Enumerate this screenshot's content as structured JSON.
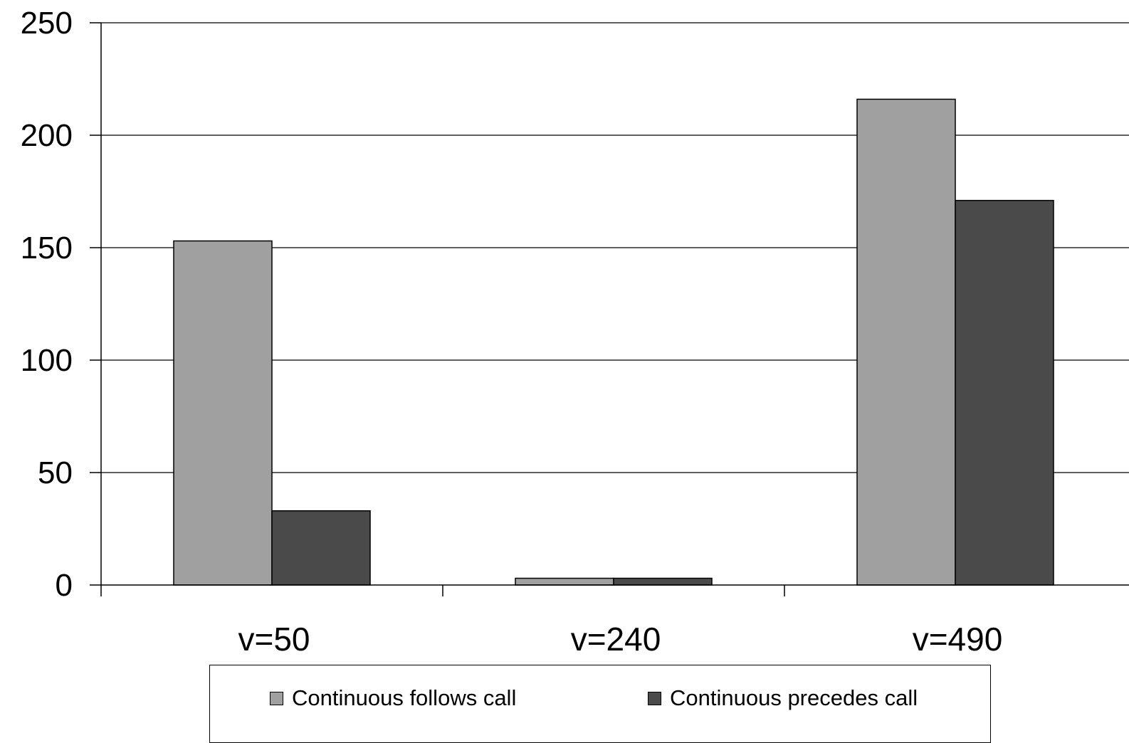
{
  "chart_data": {
    "type": "bar",
    "title": "",
    "xlabel": "",
    "ylabel": "",
    "categories": [
      "v=50",
      "v=240",
      "v=490"
    ],
    "series": [
      {
        "name": "Continuous follows call",
        "values": [
          153,
          3,
          216
        ],
        "color": "#a0a0a0"
      },
      {
        "name": "Continuous precedes call",
        "values": [
          33,
          3,
          171
        ],
        "color": "#4a4a4a"
      }
    ],
    "ylim": [
      0,
      250
    ],
    "yticks": [
      0,
      50,
      100,
      150,
      200,
      250
    ],
    "grid": true,
    "legend_position": "bottom"
  }
}
